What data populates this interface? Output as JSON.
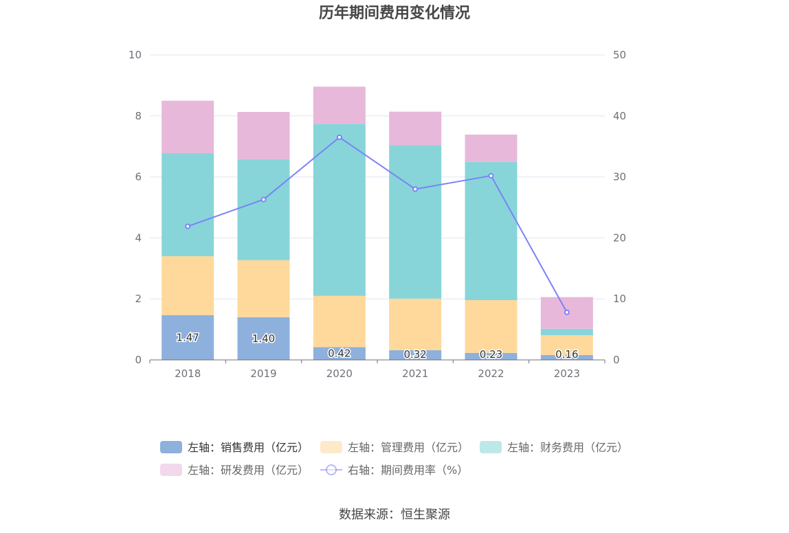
{
  "chart_data": {
    "type": "bar",
    "title": "历年期间费用变化情况",
    "categories": [
      "2018",
      "2019",
      "2020",
      "2021",
      "2022",
      "2023"
    ],
    "left_axis": {
      "min": 0,
      "max": 10,
      "ticks": [
        "0",
        "2",
        "4",
        "6",
        "8",
        "10"
      ]
    },
    "right_axis": {
      "min": 0,
      "max": 50,
      "ticks": [
        "0",
        "10",
        "20",
        "30",
        "40",
        "50"
      ]
    },
    "series": [
      {
        "name": "左轴：销售费用（亿元）",
        "type": "bar",
        "axis": "left",
        "color": "#8eb0dc",
        "values": [
          1.47,
          1.4,
          0.42,
          0.32,
          0.23,
          0.16
        ],
        "labels": [
          "1.47",
          "1.40",
          "0.42",
          "0.32",
          "0.23",
          "0.16"
        ]
      },
      {
        "name": "左轴：管理费用（亿元）",
        "type": "bar",
        "axis": "left",
        "color": "#fed99b",
        "values": [
          1.93,
          1.87,
          1.68,
          1.69,
          1.73,
          0.65
        ]
      },
      {
        "name": "左轴：财务费用（亿元）",
        "type": "bar",
        "axis": "left",
        "color": "#87d5d9",
        "values": [
          3.38,
          3.31,
          5.64,
          5.03,
          4.53,
          0.21
        ]
      },
      {
        "name": "左轴：研发费用（亿元）",
        "type": "bar",
        "axis": "left",
        "color": "#e7b8da",
        "values": [
          1.72,
          1.55,
          1.22,
          1.1,
          0.9,
          1.04
        ]
      },
      {
        "name": "右轴：期间费用率（%）",
        "type": "line",
        "axis": "right",
        "color": "#7b82f7",
        "values": [
          21.9,
          26.3,
          36.5,
          28.0,
          30.2,
          7.8
        ]
      }
    ],
    "legend_position": "bottom",
    "grid": true
  },
  "source": "数据来源：恒生聚源"
}
